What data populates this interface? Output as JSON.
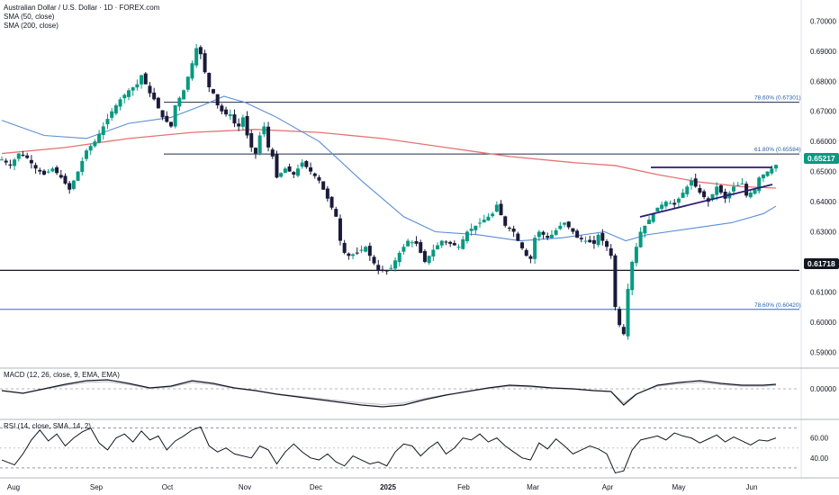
{
  "header": {
    "title": "Australian Dollar / U.S. Dollar · 1D · FOREX.com",
    "indicator_1": "SMA (50, close)",
    "indicator_2": "SMA (200, close)"
  },
  "macd_pane": {
    "label": "MACD (12, 26, close, 9, EMA, EMA)"
  },
  "rsi_pane": {
    "label": "RSI (14, close, SMA, 14, 2)"
  },
  "colors": {
    "up": "#26a69a",
    "up_dark": "#089981",
    "down": "#1a1a3a",
    "sma50": "#5b8dd6",
    "sma200": "#e57373",
    "trend": "#2e1a75",
    "fib": "#2962ff",
    "price_tag_current": "#089981",
    "price_tag_level": "#131722"
  },
  "chart_data": {
    "type": "candlestick",
    "y_axis_ticks": [
      "0.70000",
      "0.69000",
      "0.68000",
      "0.67000",
      "0.66000",
      "0.65000",
      "0.64000",
      "0.63000",
      "0.62000",
      "0.61000",
      "0.60000",
      "0.59000"
    ],
    "x_axis_labels": [
      "Aug",
      "Sep",
      "Oct",
      "Nov",
      "Dec",
      "2025",
      "Feb",
      "Mar",
      "Apr",
      "May",
      "Jun"
    ],
    "ylim": [
      0.585,
      0.707
    ],
    "current_price": "0.65217",
    "support_level": "0.61718",
    "fib_levels": [
      {
        "label": "78.60% (0.67301)",
        "value": 0.67301
      },
      {
        "label": "61.80% (0.65584)",
        "value": 0.65584
      },
      {
        "label": "78.60% (0.60420)",
        "value": 0.6042
      }
    ],
    "close_path": [
      [
        0,
        0.654
      ],
      [
        4,
        0.652
      ],
      [
        8,
        0.656
      ],
      [
        12,
        0.6545
      ],
      [
        16,
        0.651
      ],
      [
        20,
        0.649
      ],
      [
        24,
        0.651
      ],
      [
        28,
        0.648
      ],
      [
        32,
        0.644
      ],
      [
        36,
        0.65
      ],
      [
        40,
        0.657
      ],
      [
        44,
        0.66
      ],
      [
        48,
        0.665
      ],
      [
        52,
        0.67
      ],
      [
        56,
        0.674
      ],
      [
        60,
        0.677
      ],
      [
        64,
        0.679
      ],
      [
        66,
        0.682
      ],
      [
        70,
        0.676
      ],
      [
        72,
        0.674
      ],
      [
        76,
        0.668
      ],
      [
        80,
        0.665
      ],
      [
        82,
        0.672
      ],
      [
        86,
        0.677
      ],
      [
        90,
        0.686
      ],
      [
        92,
        0.691
      ],
      [
        94,
        0.689
      ],
      [
        96,
        0.683
      ],
      [
        98,
        0.678
      ],
      [
        100,
        0.676
      ],
      [
        102,
        0.672
      ],
      [
        104,
        0.67
      ],
      [
        106,
        0.669
      ],
      [
        108,
        0.669
      ],
      [
        110,
        0.666
      ],
      [
        112,
        0.665
      ],
      [
        114,
        0.668
      ],
      [
        116,
        0.662
      ],
      [
        118,
        0.658
      ],
      [
        120,
        0.656
      ],
      [
        122,
        0.662
      ],
      [
        124,
        0.665
      ],
      [
        126,
        0.658
      ],
      [
        128,
        0.655
      ],
      [
        130,
        0.648
      ],
      [
        134,
        0.651
      ],
      [
        138,
        0.649
      ],
      [
        142,
        0.653
      ],
      [
        146,
        0.65
      ],
      [
        150,
        0.647
      ],
      [
        154,
        0.641
      ],
      [
        156,
        0.638
      ],
      [
        158,
        0.635
      ],
      [
        160,
        0.627
      ],
      [
        162,
        0.623
      ],
      [
        164,
        0.622
      ],
      [
        168,
        0.623
      ],
      [
        172,
        0.625
      ],
      [
        174,
        0.622
      ],
      [
        178,
        0.617
      ],
      [
        182,
        0.617
      ],
      [
        184,
        0.618
      ],
      [
        188,
        0.623
      ],
      [
        192,
        0.627
      ],
      [
        196,
        0.626
      ],
      [
        200,
        0.62
      ],
      [
        204,
        0.624
      ],
      [
        208,
        0.627
      ],
      [
        212,
        0.626
      ],
      [
        216,
        0.625
      ],
      [
        220,
        0.63
      ],
      [
        224,
        0.632
      ],
      [
        228,
        0.634
      ],
      [
        232,
        0.636
      ],
      [
        234,
        0.639
      ],
      [
        238,
        0.632
      ],
      [
        242,
        0.63
      ],
      [
        244,
        0.627
      ],
      [
        248,
        0.622
      ],
      [
        250,
        0.621
      ],
      [
        252,
        0.628
      ],
      [
        254,
        0.63
      ],
      [
        258,
        0.628
      ],
      [
        260,
        0.629
      ],
      [
        264,
        0.632
      ],
      [
        266,
        0.633
      ],
      [
        270,
        0.63
      ],
      [
        272,
        0.628
      ],
      [
        276,
        0.627
      ],
      [
        280,
        0.626
      ],
      [
        282,
        0.629
      ],
      [
        286,
        0.625
      ],
      [
        288,
        0.622
      ],
      [
        290,
        0.605
      ],
      [
        292,
        0.599
      ],
      [
        294,
        0.596
      ],
      [
        296,
        0.611
      ],
      [
        298,
        0.62
      ],
      [
        300,
        0.625
      ],
      [
        302,
        0.63
      ],
      [
        306,
        0.634
      ],
      [
        310,
        0.638
      ],
      [
        314,
        0.64
      ],
      [
        318,
        0.639
      ],
      [
        322,
        0.643
      ],
      [
        326,
        0.647
      ],
      [
        330,
        0.643
      ],
      [
        334,
        0.64
      ],
      [
        338,
        0.645
      ],
      [
        342,
        0.641
      ],
      [
        346,
        0.645
      ],
      [
        350,
        0.646
      ],
      [
        352,
        0.642
      ],
      [
        356,
        0.644
      ],
      [
        358,
        0.648
      ],
      [
        362,
        0.65
      ],
      [
        364,
        0.651
      ],
      [
        366,
        0.6522
      ]
    ],
    "sma50_path": [
      [
        0,
        0.667
      ],
      [
        20,
        0.662
      ],
      [
        40,
        0.661
      ],
      [
        60,
        0.666
      ],
      [
        80,
        0.668
      ],
      [
        95,
        0.672
      ],
      [
        105,
        0.675
      ],
      [
        115,
        0.673
      ],
      [
        130,
        0.668
      ],
      [
        150,
        0.66
      ],
      [
        170,
        0.647
      ],
      [
        190,
        0.635
      ],
      [
        205,
        0.63
      ],
      [
        225,
        0.629
      ],
      [
        245,
        0.627
      ],
      [
        265,
        0.628
      ],
      [
        285,
        0.63
      ],
      [
        295,
        0.627
      ],
      [
        305,
        0.629
      ],
      [
        325,
        0.631
      ],
      [
        345,
        0.633
      ],
      [
        360,
        0.636
      ],
      [
        366,
        0.6385
      ]
    ],
    "sma200_path": [
      [
        0,
        0.656
      ],
      [
        30,
        0.658
      ],
      [
        60,
        0.661
      ],
      [
        90,
        0.663
      ],
      [
        120,
        0.664
      ],
      [
        150,
        0.663
      ],
      [
        180,
        0.661
      ],
      [
        210,
        0.658
      ],
      [
        240,
        0.655
      ],
      [
        270,
        0.653
      ],
      [
        290,
        0.652
      ],
      [
        310,
        0.649
      ],
      [
        330,
        0.6465
      ],
      [
        350,
        0.645
      ],
      [
        366,
        0.6445
      ]
    ],
    "macd_values": [
      [
        0,
        -0.2
      ],
      [
        10,
        -0.5
      ],
      [
        20,
        0.0
      ],
      [
        30,
        0.5
      ],
      [
        40,
        0.9
      ],
      [
        50,
        1.0
      ],
      [
        60,
        0.6
      ],
      [
        70,
        0.1
      ],
      [
        80,
        0.3
      ],
      [
        90,
        0.9
      ],
      [
        100,
        0.6
      ],
      [
        110,
        0.1
      ],
      [
        120,
        -0.2
      ],
      [
        130,
        -0.6
      ],
      [
        140,
        -0.9
      ],
      [
        150,
        -1.2
      ],
      [
        160,
        -1.5
      ],
      [
        170,
        -1.8
      ],
      [
        180,
        -2.0
      ],
      [
        190,
        -1.8
      ],
      [
        200,
        -1.2
      ],
      [
        210,
        -0.7
      ],
      [
        220,
        -0.3
      ],
      [
        230,
        0.1
      ],
      [
        240,
        0.4
      ],
      [
        250,
        0.3
      ],
      [
        260,
        0.1
      ],
      [
        270,
        0.0
      ],
      [
        280,
        -0.2
      ],
      [
        288,
        -0.3
      ],
      [
        294,
        -1.8
      ],
      [
        300,
        -0.6
      ],
      [
        310,
        0.4
      ],
      [
        320,
        0.7
      ],
      [
        330,
        0.9
      ],
      [
        340,
        0.6
      ],
      [
        350,
        0.4
      ],
      [
        360,
        0.4
      ],
      [
        366,
        0.5
      ]
    ],
    "macd_axis_label": "0.00000",
    "rsi_values": [
      [
        0,
        38
      ],
      [
        6,
        33
      ],
      [
        10,
        44
      ],
      [
        14,
        58
      ],
      [
        18,
        68
      ],
      [
        22,
        57
      ],
      [
        26,
        64
      ],
      [
        30,
        52
      ],
      [
        34,
        60
      ],
      [
        38,
        66
      ],
      [
        42,
        70
      ],
      [
        46,
        55
      ],
      [
        50,
        48
      ],
      [
        54,
        60
      ],
      [
        58,
        64
      ],
      [
        62,
        56
      ],
      [
        66,
        67
      ],
      [
        70,
        58
      ],
      [
        74,
        62
      ],
      [
        78,
        48
      ],
      [
        82,
        57
      ],
      [
        86,
        62
      ],
      [
        90,
        68
      ],
      [
        94,
        71
      ],
      [
        98,
        52
      ],
      [
        102,
        46
      ],
      [
        106,
        50
      ],
      [
        110,
        44
      ],
      [
        114,
        42
      ],
      [
        118,
        40
      ],
      [
        122,
        52
      ],
      [
        126,
        48
      ],
      [
        130,
        34
      ],
      [
        134,
        46
      ],
      [
        138,
        54
      ],
      [
        142,
        46
      ],
      [
        146,
        40
      ],
      [
        150,
        38
      ],
      [
        154,
        44
      ],
      [
        158,
        36
      ],
      [
        162,
        32
      ],
      [
        166,
        42
      ],
      [
        170,
        38
      ],
      [
        174,
        34
      ],
      [
        178,
        36
      ],
      [
        182,
        32
      ],
      [
        186,
        46
      ],
      [
        190,
        54
      ],
      [
        194,
        52
      ],
      [
        198,
        42
      ],
      [
        202,
        50
      ],
      [
        206,
        56
      ],
      [
        210,
        44
      ],
      [
        214,
        50
      ],
      [
        218,
        60
      ],
      [
        222,
        58
      ],
      [
        226,
        64
      ],
      [
        230,
        56
      ],
      [
        234,
        60
      ],
      [
        238,
        52
      ],
      [
        242,
        46
      ],
      [
        246,
        40
      ],
      [
        250,
        38
      ],
      [
        254,
        55
      ],
      [
        258,
        49
      ],
      [
        262,
        59
      ],
      [
        266,
        52
      ],
      [
        270,
        44
      ],
      [
        274,
        48
      ],
      [
        278,
        52
      ],
      [
        282,
        49
      ],
      [
        286,
        44
      ],
      [
        290,
        25
      ],
      [
        294,
        27
      ],
      [
        298,
        48
      ],
      [
        302,
        58
      ],
      [
        306,
        60
      ],
      [
        310,
        62
      ],
      [
        314,
        58
      ],
      [
        318,
        65
      ],
      [
        322,
        62
      ],
      [
        326,
        60
      ],
      [
        330,
        55
      ],
      [
        334,
        59
      ],
      [
        338,
        63
      ],
      [
        342,
        56
      ],
      [
        346,
        61
      ],
      [
        350,
        57
      ],
      [
        354,
        53
      ],
      [
        358,
        58
      ],
      [
        362,
        57
      ],
      [
        366,
        60
      ]
    ],
    "rsi_axis_ticks": [
      "60.00",
      "40.00"
    ]
  }
}
